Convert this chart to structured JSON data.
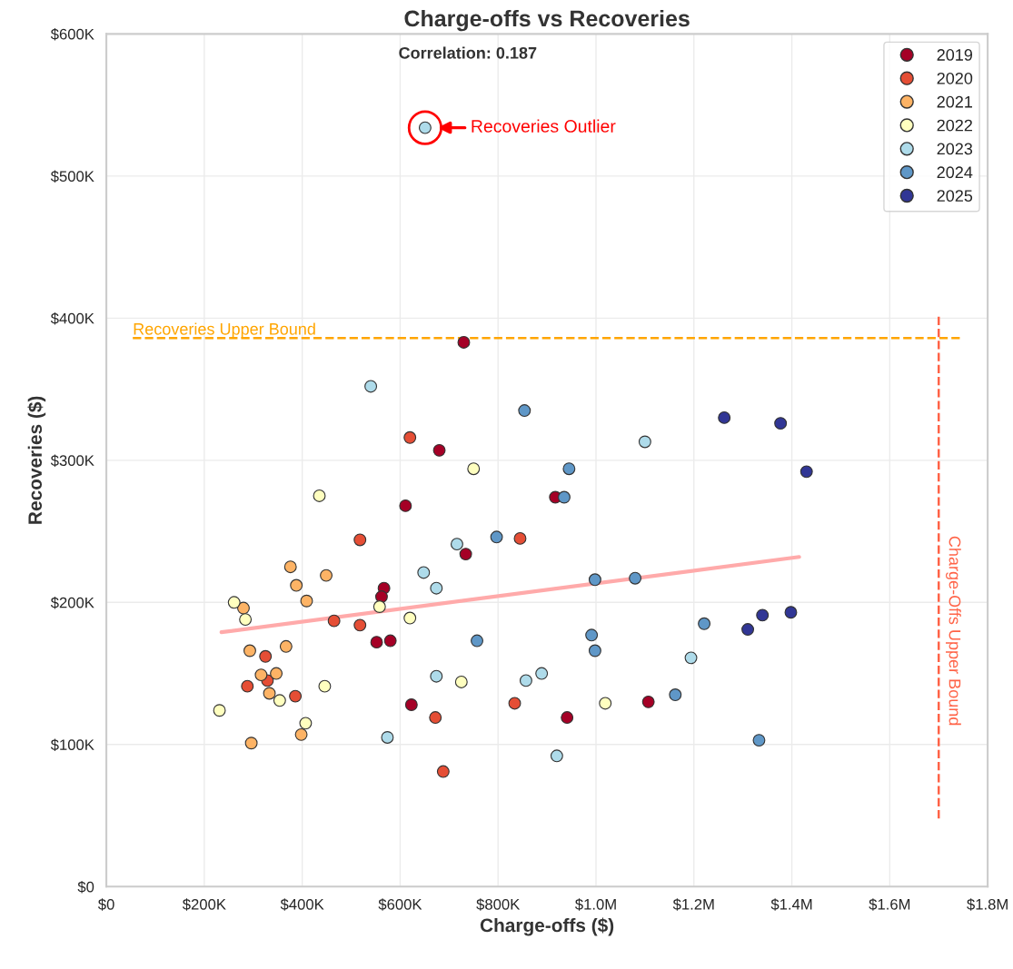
{
  "chart_data": {
    "type": "scatter",
    "title": "Charge-offs vs Recoveries",
    "xlabel": "Charge-offs ($)",
    "ylabel": "Recoveries ($)",
    "xlim": [
      0,
      1800000
    ],
    "ylim": [
      0,
      600000
    ],
    "xticks": [
      {
        "value": 0,
        "label": "$0"
      },
      {
        "value": 200000,
        "label": "$200K"
      },
      {
        "value": 400000,
        "label": "$400K"
      },
      {
        "value": 600000,
        "label": "$600K"
      },
      {
        "value": 800000,
        "label": "$800K"
      },
      {
        "value": 1000000,
        "label": "$1.0M"
      },
      {
        "value": 1200000,
        "label": "$1.2M"
      },
      {
        "value": 1400000,
        "label": "$1.4M"
      },
      {
        "value": 1600000,
        "label": "$1.6M"
      },
      {
        "value": 1800000,
        "label": "$1.8M"
      }
    ],
    "yticks": [
      {
        "value": 0,
        "label": "$0"
      },
      {
        "value": 100000,
        "label": "$100K"
      },
      {
        "value": 200000,
        "label": "$200K"
      },
      {
        "value": 300000,
        "label": "$300K"
      },
      {
        "value": 400000,
        "label": "$400K"
      },
      {
        "value": 500000,
        "label": "$500K"
      },
      {
        "value": 600000,
        "label": "$600K"
      }
    ],
    "grid": true,
    "legend": "top right",
    "marker": "circle",
    "series": [
      {
        "name": "2019",
        "color": "#a50026",
        "x": [
          611000,
          734000,
          567000,
          562000,
          552000,
          580000,
          623000,
          730000,
          917000,
          941000,
          1107000,
          680000
        ],
        "values": [
          268000,
          234000,
          210000,
          204000,
          172000,
          173000,
          128000,
          383000,
          274000,
          119000,
          130000,
          307000
        ]
      },
      {
        "name": "2020",
        "color": "#e54e35",
        "x": [
          518000,
          465000,
          518000,
          325000,
          329000,
          288000,
          386000,
          672000,
          688000,
          845000,
          834000,
          620000
        ],
        "values": [
          244000,
          187000,
          184000,
          162000,
          145000,
          141000,
          134000,
          119000,
          81000,
          245000,
          129000,
          316000
        ]
      },
      {
        "name": "2021",
        "color": "#fdb365",
        "x": [
          376000,
          449000,
          388000,
          409000,
          280000,
          293000,
          367000,
          316000,
          347000,
          333000,
          398000,
          296000
        ],
        "values": [
          225000,
          219000,
          212000,
          201000,
          196000,
          166000,
          169000,
          149000,
          150000,
          136000,
          107000,
          101000
        ]
      },
      {
        "name": "2022",
        "color": "#ffffbf",
        "x": [
          435000,
          261000,
          284000,
          558000,
          620000,
          446000,
          354000,
          231000,
          725000,
          407000,
          750000,
          1019000
        ],
        "values": [
          275000,
          200000,
          188000,
          197000,
          189000,
          141000,
          131000,
          124000,
          144000,
          115000,
          294000,
          129000
        ]
      },
      {
        "name": "2023",
        "color": "#aedbea",
        "x": [
          716000,
          648000,
          674000,
          674000,
          574000,
          1100000,
          1194000,
          857000,
          889000,
          920000,
          540000,
          651000
        ],
        "values": [
          241000,
          221000,
          210000,
          148000,
          105000,
          313000,
          161000,
          145000,
          150000,
          92000,
          352000,
          534000
        ]
      },
      {
        "name": "2024",
        "color": "#5f97c7",
        "x": [
          854000,
          945000,
          935000,
          797000,
          998000,
          1080000,
          757000,
          991000,
          998000,
          1221000,
          1162000,
          1333000
        ],
        "values": [
          335000,
          294000,
          274000,
          246000,
          216000,
          217000,
          173000,
          177000,
          166000,
          185000,
          135000,
          103000
        ]
      },
      {
        "name": "2025",
        "color": "#313695",
        "x": [
          1262000,
          1377000,
          1430000,
          1340000,
          1398000,
          1310000
        ],
        "values": [
          330000,
          326000,
          292000,
          191000,
          193000,
          181000
        ]
      },
      {
        "type": "line",
        "marker": "none",
        "color": "#ffaaaa",
        "x": [
          235000,
          1415000
        ],
        "values": [
          179000,
          232000
        ]
      }
    ],
    "ref_lines": [
      {
        "axis": "y",
        "value": 386000,
        "label": "Recoveries Upper Bound",
        "color": "#ffa500",
        "line_style": "dashed"
      },
      {
        "axis": "x",
        "value": 1700000,
        "label": "Charge-Offs Upper Bound",
        "color": "#ff6347",
        "line_style": "dashed"
      }
    ],
    "annotations": [
      "Correlation: 0.187",
      {
        "text": "Recoveries Outlier",
        "x": 651000,
        "y": 534000
      }
    ]
  }
}
